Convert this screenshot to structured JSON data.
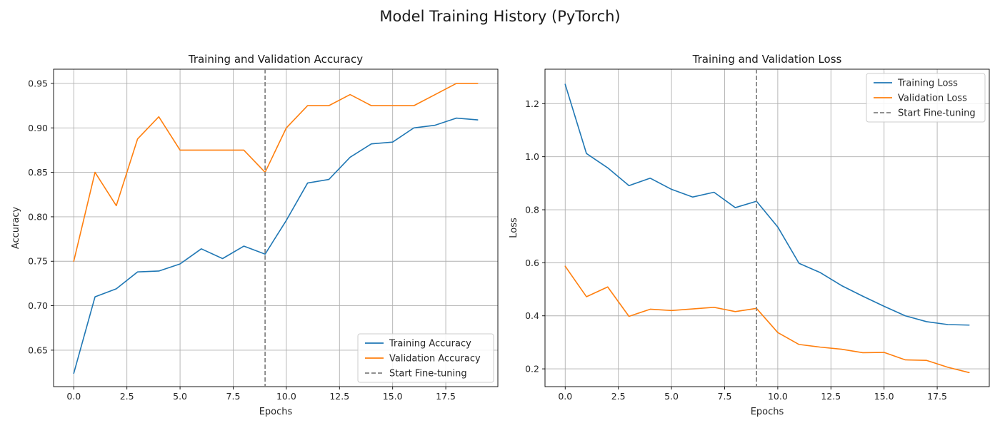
{
  "figure": {
    "suptitle": "Model Training History (PyTorch)"
  },
  "chart_data": [
    {
      "type": "line",
      "title": "Training and Validation Accuracy",
      "xlabel": "Epochs",
      "ylabel": "Accuracy",
      "xlim": [
        -0.95,
        19.95
      ],
      "ylim": [
        0.609,
        0.966
      ],
      "xticks": [
        0.0,
        2.5,
        5.0,
        7.5,
        10.0,
        12.5,
        15.0,
        17.5
      ],
      "xtick_labels": [
        "0.0",
        "2.5",
        "5.0",
        "7.5",
        "10.0",
        "12.5",
        "15.0",
        "17.5"
      ],
      "yticks": [
        0.65,
        0.7,
        0.75,
        0.8,
        0.85,
        0.9,
        0.95
      ],
      "ytick_labels": [
        "0.65",
        "0.70",
        "0.75",
        "0.80",
        "0.85",
        "0.90",
        "0.95"
      ],
      "grid": true,
      "legend_position": "lower-right",
      "x": [
        0,
        1,
        2,
        3,
        4,
        5,
        6,
        7,
        8,
        9,
        10,
        11,
        12,
        13,
        14,
        15,
        16,
        17,
        18,
        19
      ],
      "series": [
        {
          "name": "Training Accuracy",
          "color": "#1f77b4",
          "style": "solid",
          "values": [
            0.624,
            0.71,
            0.719,
            0.738,
            0.739,
            0.747,
            0.764,
            0.753,
            0.767,
            0.758,
            0.796,
            0.838,
            0.842,
            0.867,
            0.882,
            0.884,
            0.9,
            0.903,
            0.911,
            0.909
          ]
        },
        {
          "name": "Validation Accuracy",
          "color": "#ff7f0e",
          "style": "solid",
          "values": [
            0.75,
            0.85,
            0.8125,
            0.8875,
            0.9125,
            0.875,
            0.875,
            0.875,
            0.875,
            0.85,
            0.9,
            0.925,
            0.925,
            0.9375,
            0.925,
            0.925,
            0.925,
            0.9375,
            0.95,
            0.95
          ]
        }
      ],
      "vline": {
        "name": "Start Fine-tuning",
        "x": 9,
        "color": "#808080",
        "style": "dashed"
      }
    },
    {
      "type": "line",
      "title": "Training and Validation Loss",
      "xlabel": "Epochs",
      "ylabel": "Loss",
      "xlim": [
        -0.95,
        19.95
      ],
      "ylim": [
        0.133,
        1.33
      ],
      "xticks": [
        0.0,
        2.5,
        5.0,
        7.5,
        10.0,
        12.5,
        15.0,
        17.5
      ],
      "xtick_labels": [
        "0.0",
        "2.5",
        "5.0",
        "7.5",
        "10.0",
        "12.5",
        "15.0",
        "17.5"
      ],
      "yticks": [
        0.2,
        0.4,
        0.6,
        0.8,
        1.0,
        1.2
      ],
      "ytick_labels": [
        "0.2",
        "0.4",
        "0.6",
        "0.8",
        "1.0",
        "1.2"
      ],
      "grid": true,
      "legend_position": "upper-right",
      "x": [
        0,
        1,
        2,
        3,
        4,
        5,
        6,
        7,
        8,
        9,
        10,
        11,
        12,
        13,
        14,
        15,
        16,
        17,
        18,
        19
      ],
      "series": [
        {
          "name": "Training Loss",
          "color": "#1f77b4",
          "style": "solid",
          "values": [
            1.273,
            1.012,
            0.958,
            0.891,
            0.919,
            0.877,
            0.848,
            0.866,
            0.808,
            0.832,
            0.735,
            0.598,
            0.563,
            0.514,
            0.474,
            0.436,
            0.4,
            0.378,
            0.367,
            0.365
          ]
        },
        {
          "name": "Validation Loss",
          "color": "#ff7f0e",
          "style": "solid",
          "values": [
            0.587,
            0.472,
            0.509,
            0.398,
            0.425,
            0.42,
            0.426,
            0.432,
            0.416,
            0.428,
            0.337,
            0.292,
            0.282,
            0.274,
            0.261,
            0.262,
            0.234,
            0.232,
            0.206,
            0.186
          ]
        }
      ],
      "vline": {
        "name": "Start Fine-tuning",
        "x": 9,
        "color": "#808080",
        "style": "dashed"
      }
    }
  ]
}
